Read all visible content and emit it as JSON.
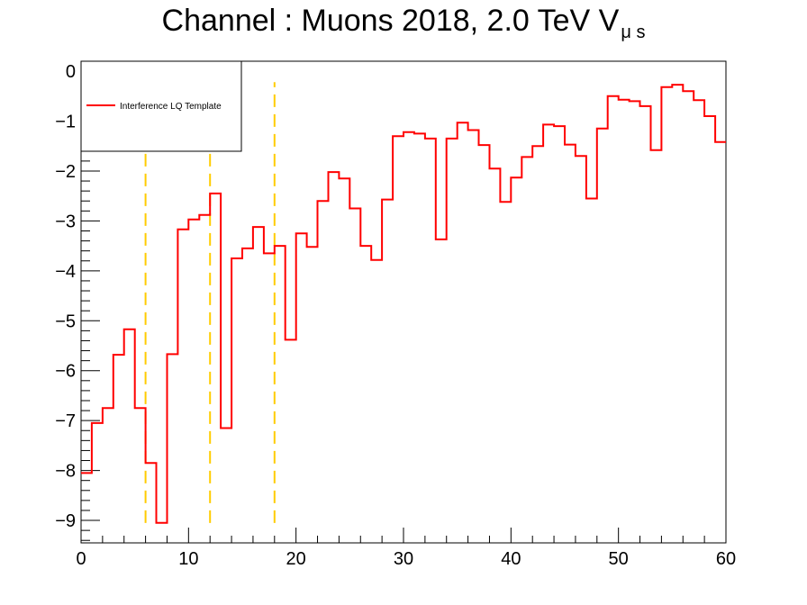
{
  "chart_data": {
    "type": "line",
    "title": "Channel : Muons 2018, 2.0 TeV V",
    "title_subscript": "μ s",
    "xlabel": "",
    "ylabel": "",
    "xlim": [
      0,
      60
    ],
    "ylim": [
      -9.45,
      0.2
    ],
    "xticks": [
      0,
      10,
      20,
      30,
      40,
      50,
      60
    ],
    "yticks": [
      0,
      -1,
      -2,
      -3,
      -4,
      -5,
      -6,
      -7,
      -8,
      -9
    ],
    "ytick_labels": [
      "0",
      "−1",
      "−2",
      "−3",
      "−4",
      "−5",
      "−6",
      "−7",
      "−8",
      "−9"
    ],
    "grid": false,
    "legend": {
      "position": "top-left",
      "entries": [
        {
          "label": "Interference LQ Template",
          "color": "#ff0000"
        }
      ]
    },
    "series": [
      {
        "name": "Interference LQ Template",
        "color": "#ff0000",
        "style": "histogram-step",
        "bin_width": 1,
        "x_start": 0,
        "values": [
          -8.05,
          -7.05,
          -6.75,
          -5.68,
          -5.17,
          -6.75,
          -7.85,
          -9.05,
          -5.67,
          -3.17,
          -2.97,
          -2.88,
          -2.45,
          -7.15,
          -3.75,
          -3.55,
          -3.12,
          -3.65,
          -3.5,
          -5.38,
          -3.25,
          -3.52,
          -2.6,
          -2.02,
          -2.15,
          -2.75,
          -3.5,
          -3.78,
          -2.57,
          -1.3,
          -1.22,
          -1.25,
          -1.35,
          -3.37,
          -1.35,
          -1.03,
          -1.18,
          -1.48,
          -1.95,
          -2.62,
          -2.13,
          -1.72,
          -1.5,
          -1.07,
          -1.1,
          -1.47,
          -1.7,
          -2.55,
          -1.15,
          -0.5,
          -0.57,
          -0.6,
          -0.7,
          -1.58,
          -0.32,
          -0.27,
          -0.4,
          -0.58,
          -0.9,
          -1.42
        ]
      }
    ],
    "vertical_lines": {
      "x": [
        6,
        12,
        18
      ],
      "y_from": -9.05,
      "y_to": -0.22,
      "color": "#ffcc00",
      "style": "dashed"
    }
  }
}
